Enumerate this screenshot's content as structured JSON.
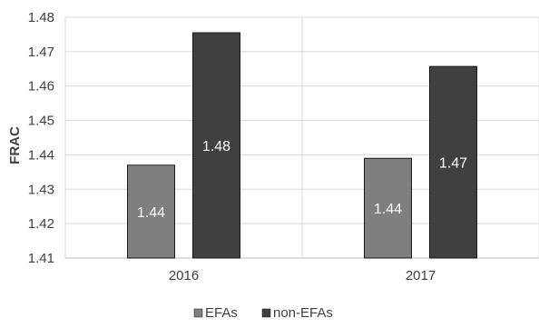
{
  "chart_data": {
    "type": "bar",
    "categories": [
      "2016",
      "2017"
    ],
    "series": [
      {
        "name": "EFAs",
        "values": [
          1.437,
          1.439
        ],
        "labels": [
          "1.44",
          "1.44"
        ],
        "color": "#7f7f7f"
      },
      {
        "name": "non-EFAs",
        "values": [
          1.4755,
          1.4657
        ],
        "labels": [
          "1.48",
          "1.47"
        ],
        "color": "#404040"
      }
    ],
    "ylabel": "FRAC",
    "xlabel": "",
    "ylim": [
      1.41,
      1.48
    ],
    "yticks": [
      "1.41",
      "1.42",
      "1.43",
      "1.44",
      "1.45",
      "1.46",
      "1.47",
      "1.48"
    ],
    "grid": true,
    "legend_position": "bottom",
    "colors": {
      "gridline": "#d9d9d9",
      "text": "#404040",
      "bar_stroke": "#1a1a1a"
    }
  }
}
